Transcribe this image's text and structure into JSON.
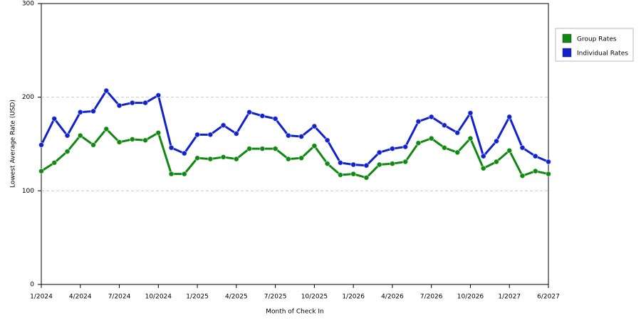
{
  "chart_data": {
    "type": "line",
    "x_label": "Month of Check In",
    "y_label": "Lowest Average Rate (USD)",
    "categories": [
      "1/2024",
      null,
      null,
      "4/2024",
      null,
      null,
      "7/2024",
      null,
      null,
      "10/2024",
      null,
      null,
      "1/2025",
      null,
      null,
      "4/2025",
      null,
      null,
      "7/2025",
      null,
      null,
      "10/2025",
      null,
      null,
      "1/2026",
      null,
      null,
      "4/2026",
      null,
      null,
      "7/2026",
      null,
      null,
      "10/2026",
      null,
      null,
      "1/2027",
      null,
      null,
      "6/2027"
    ],
    "series": [
      {
        "name": "Group Rates",
        "color": "#118811",
        "values": [
          121,
          130,
          142,
          159,
          149,
          166,
          152,
          155,
          154,
          162,
          118,
          118,
          135,
          134,
          136,
          134,
          145,
          145,
          145,
          134,
          135,
          148,
          129,
          117,
          118,
          114,
          128,
          129,
          131,
          151,
          156,
          146,
          141,
          156,
          124,
          131,
          143,
          116,
          121,
          118
        ]
      },
      {
        "name": "Individual Rates",
        "color": "#1122cc",
        "values": [
          149,
          177,
          159,
          184,
          185,
          207,
          191,
          194,
          194,
          202,
          146,
          140,
          160,
          160,
          170,
          161,
          184,
          180,
          177,
          159,
          158,
          169,
          154,
          130,
          128,
          127,
          141,
          145,
          147,
          174,
          179,
          170,
          162,
          183,
          137,
          153,
          179,
          146,
          137,
          131
        ]
      }
    ],
    "ylim": [
      0,
      300
    ],
    "yticks": [
      0,
      100,
      200,
      300
    ],
    "grid": true,
    "legend": "right"
  }
}
